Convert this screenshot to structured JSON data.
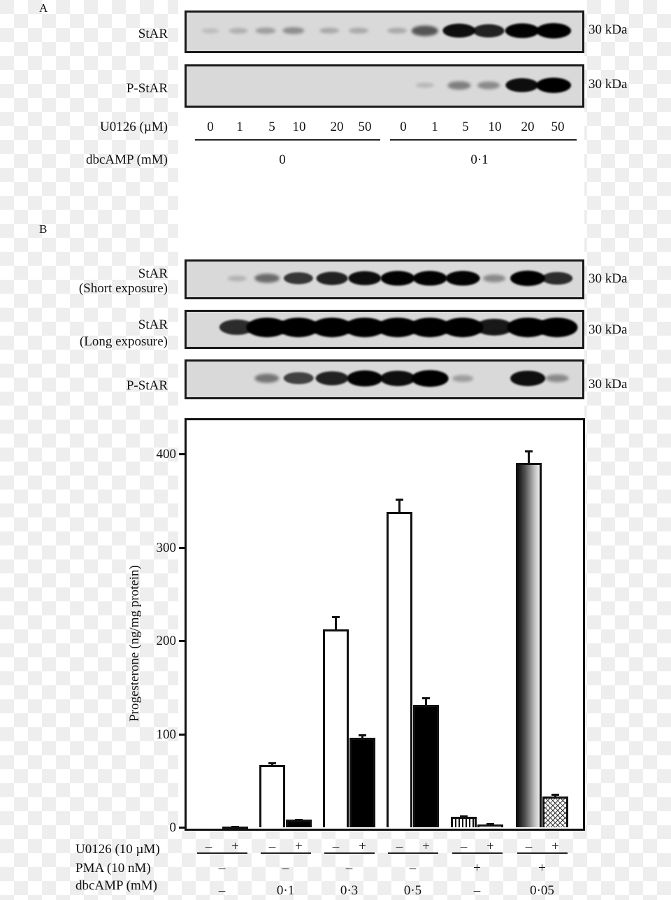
{
  "panel_a": {
    "letter": "A",
    "rows": [
      {
        "label": "StAR",
        "size_label": "30 kDa",
        "bands": [
          0.05,
          0.12,
          0.2,
          0.28,
          0.15,
          0.15,
          0.15,
          0.55,
          0.9,
          0.8,
          0.95,
          1.0
        ]
      },
      {
        "label": "P-StAR",
        "size_label": "30 kDa",
        "bands": [
          0,
          0,
          0,
          0,
          0,
          0,
          0,
          0.08,
          0.35,
          0.3,
          0.9,
          1.0
        ]
      }
    ],
    "u0126_label": "U0126 (µM)",
    "u0126_values": [
      "0",
      "1",
      "5",
      "10",
      "20",
      "50",
      "0",
      "1",
      "5",
      "10",
      "20",
      "50"
    ],
    "dbcamp_label": "dbcAMP (mM)",
    "dbcamp_groups": [
      "0",
      "0·1"
    ]
  },
  "panel_b": {
    "letter": "B",
    "rows": [
      {
        "label_line1": "StAR",
        "label_line2": "(Short exposure)",
        "size_label": "30 kDa",
        "bands": [
          0,
          0.1,
          0.45,
          0.7,
          0.8,
          0.9,
          0.95,
          0.95,
          0.95,
          0.3,
          1.0,
          0.75
        ]
      },
      {
        "label_line1": "StAR",
        "label_line2": "(Long exposure)",
        "size_label": "30 kDa",
        "bands": [
          0,
          0.75,
          1.0,
          1.0,
          1.0,
          1.0,
          1.0,
          1.0,
          1.0,
          0.85,
          1.0,
          1.0
        ]
      },
      {
        "label_line1": "P-StAR",
        "label_line2": "",
        "size_label": "30 kDa",
        "bands": [
          0,
          0,
          0.4,
          0.65,
          0.8,
          0.95,
          0.9,
          1.0,
          0.2,
          0,
          0.9,
          0.3
        ]
      }
    ]
  },
  "chart_data": {
    "type": "bar",
    "title": "",
    "xlabel": "",
    "ylabel": "Progesterone (ng/mg protein)",
    "ylim": [
      0,
      440
    ],
    "yticks": [
      0,
      100,
      200,
      300,
      400
    ],
    "grid": false,
    "legend": null,
    "row_labels": {
      "u0126": "U0126 (10 µM)",
      "pma": "PMA (10 nM)",
      "dbcamp": "dbcAMP (mM)"
    },
    "groups": [
      {
        "dbcamp": "–",
        "pma": "–",
        "u0126": [
          "–",
          "+"
        ],
        "values": [
          0,
          1
        ],
        "errors": [
          0,
          0.5
        ],
        "fills": [
          "white",
          "white"
        ]
      },
      {
        "dbcamp": "0·1",
        "pma": "–",
        "u0126": [
          "–",
          "+"
        ],
        "values": [
          67,
          8
        ],
        "errors": [
          3,
          1
        ],
        "fills": [
          "white",
          "black"
        ]
      },
      {
        "dbcamp": "0·3",
        "pma": "–",
        "u0126": [
          "–",
          "+"
        ],
        "values": [
          212,
          96
        ],
        "errors": [
          14,
          4
        ],
        "fills": [
          "white",
          "black"
        ]
      },
      {
        "dbcamp": "0·5",
        "pma": "–",
        "u0126": [
          "–",
          "+"
        ],
        "values": [
          338,
          131
        ],
        "errors": [
          14,
          8
        ],
        "fills": [
          "white",
          "black"
        ]
      },
      {
        "dbcamp": "–",
        "pma": "+",
        "u0126": [
          "–",
          "+"
        ],
        "values": [
          11,
          3
        ],
        "errors": [
          2,
          1.5
        ],
        "fills": [
          "striped",
          "white"
        ]
      },
      {
        "dbcamp": "0·05",
        "pma": "+",
        "u0126": [
          "–",
          "+"
        ],
        "values": [
          390,
          33
        ],
        "errors": [
          14,
          3
        ],
        "fills": [
          "gradient",
          "hatched"
        ]
      }
    ]
  }
}
